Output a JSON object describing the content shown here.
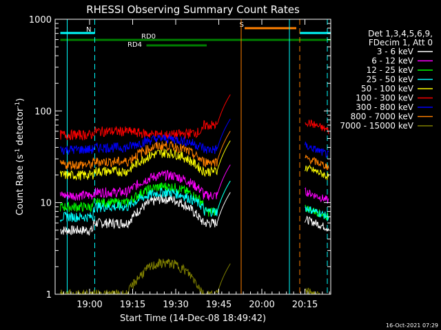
{
  "chart_data": {
    "type": "line",
    "title": "RHESSI Observing Summary Count Rates",
    "xlabel": "Start Time (14-Dec-08 18:49:42)",
    "ylabel_main": "Count Rate (s",
    "ylabel_sup1": "-1",
    "ylabel_mid": " detector",
    "ylabel_sup2": "-1",
    "ylabel_end": ")",
    "y_scale": "log",
    "ylim": [
      1,
      1000
    ],
    "xlim_minutes": [
      18.8,
      20.4
    ],
    "x_ticks": [
      {
        "label": "19:00",
        "t": 19.0
      },
      {
        "label": "19:15",
        "t": 19.25
      },
      {
        "label": "19:30",
        "t": 19.5
      },
      {
        "label": "19:45",
        "t": 19.75
      },
      {
        "label": "20:00",
        "t": 20.0
      },
      {
        "label": "20:15",
        "t": 20.25
      }
    ],
    "y_ticks": [
      {
        "label": "1",
        "v": 1
      },
      {
        "label": "10",
        "v": 10
      },
      {
        "label": "100",
        "v": 100
      },
      {
        "label": "1000",
        "v": 1000
      }
    ],
    "legend_placement": "right",
    "legend_header": [
      "Det 1,3,4,5,6,9,",
      "FDecim 1, Att 0"
    ],
    "series": [
      {
        "name": "3 - 6 keV",
        "color": "#ffffff",
        "level": [
          5,
          6,
          11,
          6
        ]
      },
      {
        "name": "6 - 12 keV",
        "color": "#ff00ff",
        "level": [
          12,
          13,
          20,
          12
        ]
      },
      {
        "name": "12 - 25 keV",
        "color": "#00ff00",
        "level": [
          9,
          10,
          15,
          8
        ]
      },
      {
        "name": "25 - 50 keV",
        "color": "#00ffff",
        "level": [
          7,
          9,
          13,
          8
        ]
      },
      {
        "name": "50 - 100 keV",
        "color": "#ffff00",
        "level": [
          20,
          22,
          35,
          22
        ]
      },
      {
        "name": "100 - 300 keV",
        "color": "#ff0000",
        "level": [
          55,
          60,
          55,
          70
        ]
      },
      {
        "name": "300 - 800 keV",
        "color": "#0000ff",
        "level": [
          38,
          40,
          50,
          38
        ]
      },
      {
        "name": "800 - 7000 keV",
        "color": "#ff8000",
        "level": [
          26,
          28,
          42,
          28
        ]
      },
      {
        "name": "7000 - 15000 keV",
        "color": "#808000",
        "level": [
          1,
          1,
          2.2,
          1
        ]
      }
    ],
    "flags": [
      {
        "label": "N",
        "color": "#00ffff",
        "t_start": 18.83,
        "t_end": 19.03
      },
      {
        "label": "RD0",
        "color": "#008000",
        "t_start": 18.83,
        "t_end": 20.4
      },
      {
        "label": "RD4",
        "color": "#008000",
        "t_start": 19.33,
        "t_end": 19.68
      },
      {
        "label": "S",
        "color": "#ff8000",
        "t_start": 19.9,
        "t_end": 20.2
      }
    ],
    "vertical_markers": [
      {
        "t": 18.87,
        "color": "#00ffff",
        "style": "solid"
      },
      {
        "t": 19.03,
        "color": "#00ffff",
        "style": "dashed"
      },
      {
        "t": 19.88,
        "color": "#ff8000",
        "style": "solid"
      },
      {
        "t": 20.16,
        "color": "#00ffff",
        "style": "solid"
      },
      {
        "t": 20.22,
        "color": "#ff8000",
        "style": "dashed"
      },
      {
        "t": 20.38,
        "color": "#00ffff",
        "style": "dashed"
      }
    ]
  },
  "footer": {
    "timestamp": "16-Oct-2021 07:29"
  }
}
